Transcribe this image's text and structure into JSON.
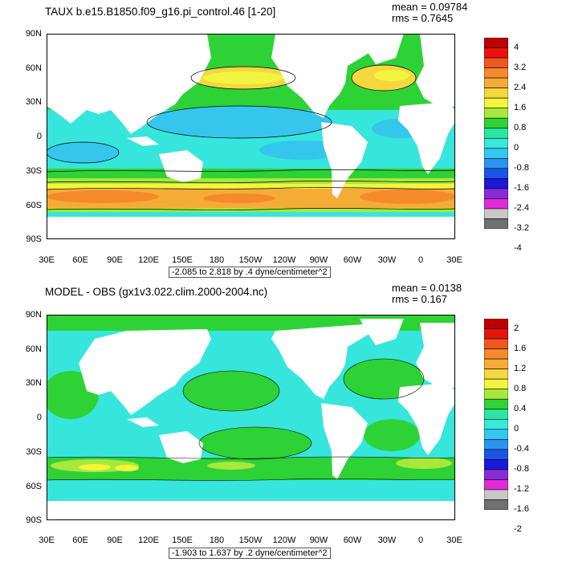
{
  "panels": [
    {
      "title": "TAUX b.e15.B1850.f09_g16.pi_control.46 [1-20]",
      "mean": "mean = 0.09784",
      "rms": "rms = 0.7645",
      "range_label": "-2.085 to 2.818 by .4 dyne/centimeter^2",
      "colorbar_labels": [
        "4",
        "3.2",
        "2.4",
        "1.6",
        "0.8",
        "0",
        "-0.8",
        "-1.6",
        "-2.4",
        "-3.2",
        "-4"
      ]
    },
    {
      "title": "MODEL - OBS (gx1v3.022.clim.2000-2004.nc)",
      "mean": "mean = 0.0138",
      "rms": "rms = 0.167",
      "range_label": "-1.903 to 1.637 by .2 dyne/centimeter^2",
      "colorbar_labels": [
        "2",
        "1.6",
        "1.2",
        "0.8",
        "0.4",
        "0",
        "-0.4",
        "-0.8",
        "-1.2",
        "-1.6",
        "-2"
      ]
    }
  ],
  "lat_labels": [
    "90N",
    "60N",
    "30N",
    "0",
    "30S",
    "60S",
    "90S"
  ],
  "lon_labels": [
    "30E",
    "60E",
    "90E",
    "120E",
    "150E",
    "180",
    "150W",
    "120W",
    "90W",
    "60W",
    "30W",
    "0",
    "30E"
  ],
  "colorbar_colors": [
    "#c00000",
    "#e8140c",
    "#f2561d",
    "#f58a2a",
    "#f5ac37",
    "#f5d73f",
    "#f2f53f",
    "#a8e83b",
    "#31d236",
    "#2ce6a0",
    "#37e8dc",
    "#34c7ef",
    "#2b94ee",
    "#1a55e8",
    "#1a1ad8",
    "#8a2bd8",
    "#e22bd8",
    "#c8c8c8",
    "#707070"
  ]
}
